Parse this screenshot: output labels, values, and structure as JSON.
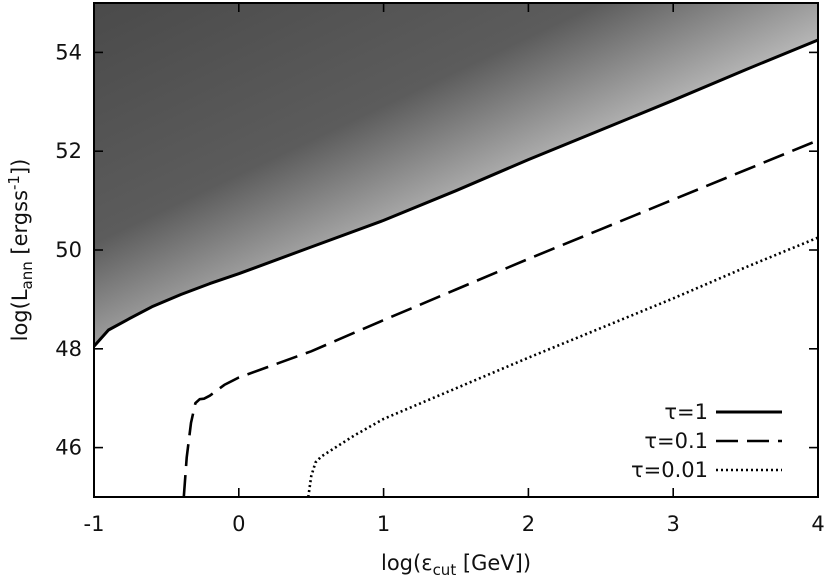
{
  "chart_data": {
    "type": "line",
    "xlabel": {
      "prefix": "log(",
      "symbol": "ε",
      "sub": "cut",
      "suffix": " [GeV])"
    },
    "ylabel": {
      "prefix": "log(L",
      "sub": "ann",
      "mid": " [ergss",
      "sup": "-1",
      "suffix": "])"
    },
    "xlim": [
      -1,
      4
    ],
    "ylim": [
      45,
      55
    ],
    "x_ticks": [
      -1,
      0,
      1,
      2,
      3,
      4
    ],
    "x_tick_labels": [
      "-1",
      "0",
      "1",
      "2",
      "3",
      "4"
    ],
    "y_ticks": [
      46,
      48,
      50,
      52,
      54
    ],
    "y_tick_labels": [
      "46",
      "48",
      "50",
      "52",
      "54"
    ],
    "grid": false,
    "legend_position": "bottom-right",
    "shaded_region": {
      "description_bound": "above τ=1 curve",
      "color_dark": "#4a4a4a",
      "color_light": "#ffffff"
    },
    "series": [
      {
        "name": "τ=1",
        "style": "solid",
        "x": [
          -1.0,
          -0.9,
          -0.75,
          -0.6,
          -0.4,
          -0.2,
          0.0,
          0.5,
          1.0,
          1.5,
          2.0,
          2.5,
          3.0,
          3.5,
          4.0
        ],
        "y": [
          48.05,
          48.38,
          48.62,
          48.85,
          49.1,
          49.32,
          49.52,
          50.06,
          50.6,
          51.2,
          51.83,
          52.43,
          53.03,
          53.65,
          54.25
        ]
      },
      {
        "name": "τ=0.1",
        "style": "dashed",
        "x": [
          -0.38,
          -0.36,
          -0.33,
          -0.3,
          -0.27,
          -0.24,
          -0.2,
          -0.1,
          0.0,
          0.5,
          1.0,
          1.5,
          2.0,
          2.5,
          3.0,
          3.5,
          4.0
        ],
        "y": [
          45.0,
          45.8,
          46.5,
          46.9,
          46.98,
          46.99,
          47.05,
          47.27,
          47.42,
          47.95,
          48.58,
          49.2,
          49.82,
          50.42,
          51.02,
          51.62,
          52.22
        ]
      },
      {
        "name": "τ=0.01",
        "style": "dotted",
        "x": [
          0.48,
          0.5,
          0.53,
          0.57,
          0.65,
          0.8,
          1.0,
          1.5,
          2.0,
          2.5,
          3.0,
          3.5,
          4.0
        ],
        "y": [
          45.0,
          45.42,
          45.7,
          45.82,
          45.97,
          46.25,
          46.58,
          47.2,
          47.82,
          48.42,
          49.02,
          49.65,
          50.25
        ]
      }
    ]
  }
}
